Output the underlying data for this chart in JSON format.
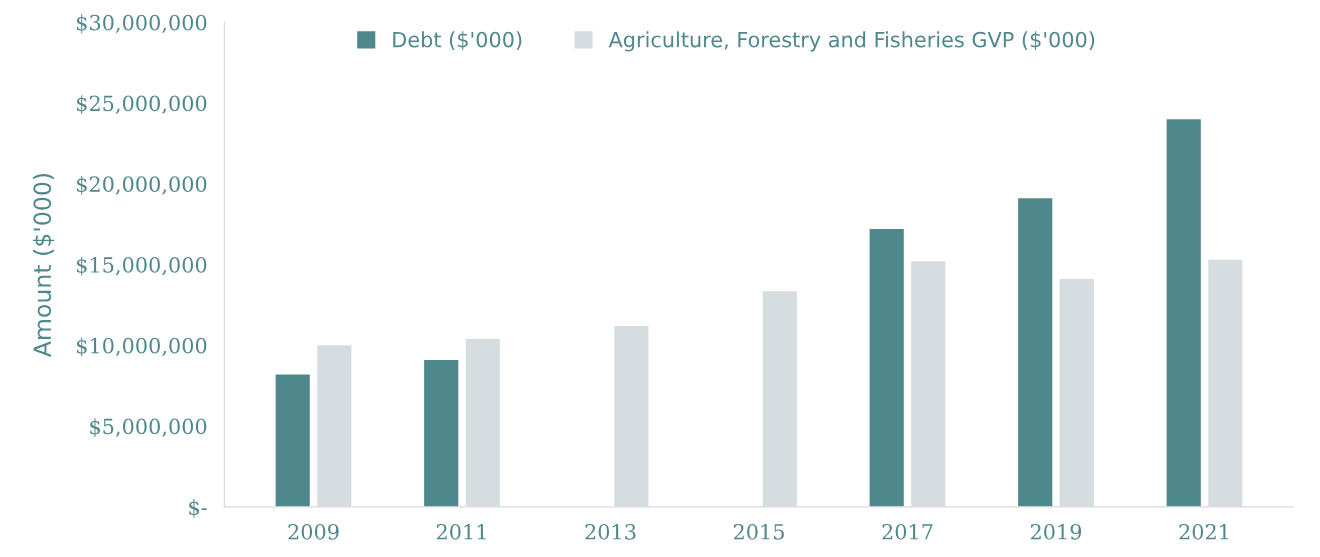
{
  "chart_data": {
    "type": "bar",
    "ylabel": "Amount ($'000)",
    "categories": [
      "2009",
      "2011",
      "2013",
      "2015",
      "2017",
      "2019",
      "2021"
    ],
    "series": [
      {
        "name": "Debt ($'000)",
        "color": "#4e878c",
        "values": [
          8200000,
          9100000,
          null,
          null,
          17200000,
          19100000,
          24000000
        ]
      },
      {
        "name": "Agriculture, Forestry and Fisheries GVP ($'000)",
        "color": "#d5dde0",
        "values": [
          10000000,
          10400000,
          11200000,
          13350000,
          15200000,
          14100000,
          15300000
        ]
      }
    ],
    "ylim": [
      0,
      30000000
    ],
    "yticks": [
      {
        "value": 0,
        "label": "$-"
      },
      {
        "value": 5000000,
        "label": "$5,000,000"
      },
      {
        "value": 10000000,
        "label": "$10,000,000"
      },
      {
        "value": 15000000,
        "label": "$15,000,000"
      },
      {
        "value": 20000000,
        "label": "$20,000,000"
      },
      {
        "value": 25000000,
        "label": "$25,000,000"
      },
      {
        "value": 30000000,
        "label": "$30,000,000"
      }
    ],
    "grid": false,
    "legend": "top"
  }
}
